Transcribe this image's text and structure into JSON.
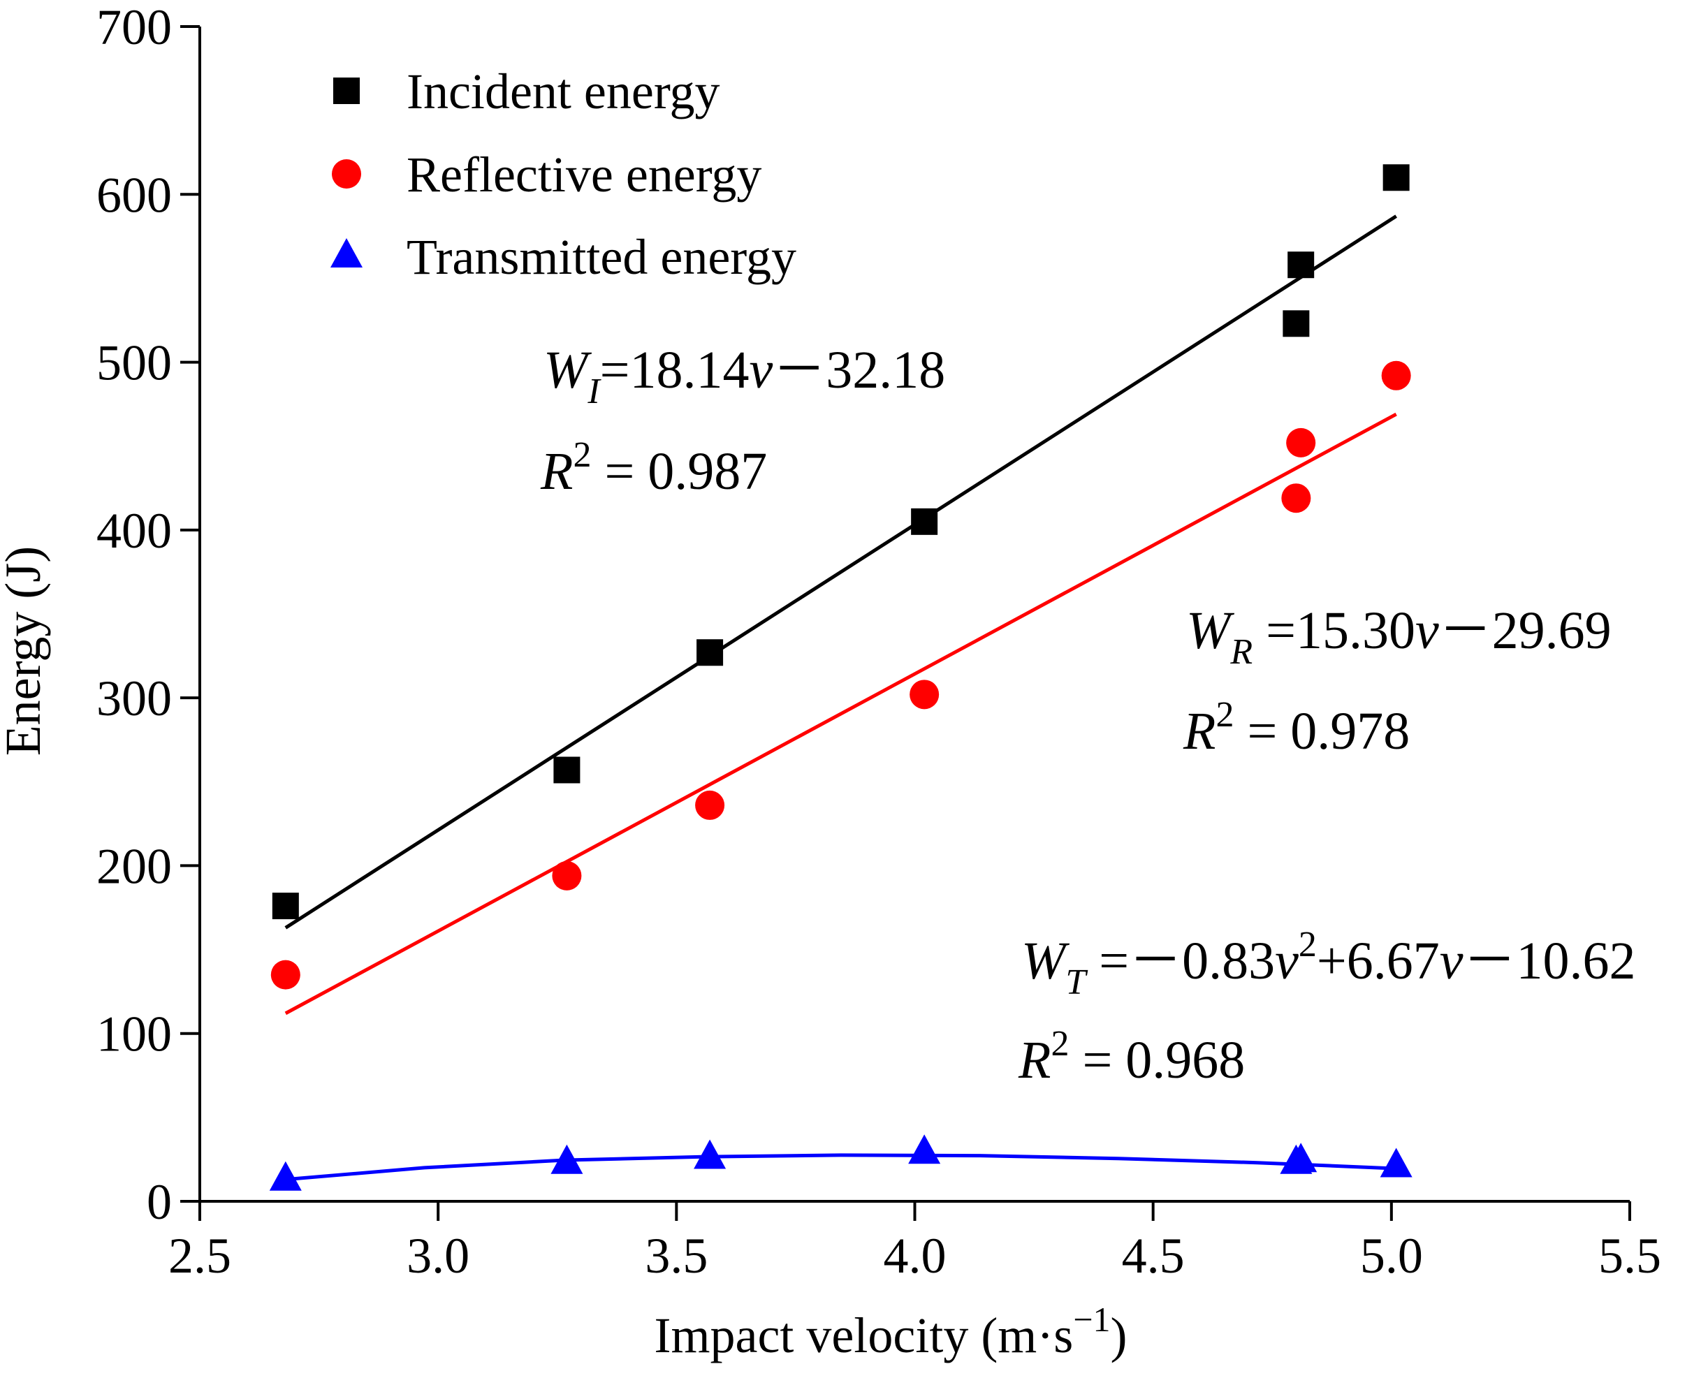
{
  "chart_data": {
    "type": "scatter",
    "xlabel": "Impact velocity (m·s",
    "xlabel_sup": "−1",
    "xlabel_close": ")",
    "ylabel": "Energy (J)",
    "xlim": [
      2.5,
      5.5
    ],
    "ylim": [
      0,
      700
    ],
    "x_ticks": [
      2.5,
      3.0,
      3.5,
      4.0,
      4.5,
      5.0,
      5.5
    ],
    "x_tick_labels": [
      "2.5",
      "3.0",
      "3.5",
      "4.0",
      "4.5",
      "5.0",
      "5.5"
    ],
    "y_ticks": [
      0,
      100,
      200,
      300,
      400,
      500,
      600,
      700
    ],
    "y_tick_labels": [
      "0",
      "100",
      "200",
      "300",
      "400",
      "500",
      "600",
      "700"
    ],
    "grid": false,
    "legend_position": "top-left",
    "series": [
      {
        "name": "Incident energy",
        "marker": "square",
        "color": "#000000",
        "x": [
          2.68,
          3.27,
          3.57,
          4.02,
          4.8,
          4.81,
          5.01
        ],
        "y": [
          176,
          257,
          327,
          405,
          523,
          558,
          610
        ],
        "fit": {
          "kind": "linear",
          "a": 18.14,
          "b": -32.18,
          "x_range": [
            2.68,
            5.01
          ],
          "y_range": [
            163,
            587
          ]
        },
        "equation": {
          "lhs": "W",
          "sub": "I",
          "rhs_parts": [
            {
              "t": "=18.14"
            },
            {
              "t": "v",
              "italic": true
            },
            {
              "t": "－32.18"
            }
          ]
        },
        "r2": {
          "label": "R",
          "sup": "2",
          "value": " = 0.987"
        }
      },
      {
        "name": "Reflective energy",
        "marker": "circle",
        "color": "#ff0000",
        "x": [
          2.68,
          3.27,
          3.57,
          4.02,
          4.8,
          4.81,
          5.01
        ],
        "y": [
          135,
          194,
          236,
          302,
          419,
          452,
          492
        ],
        "fit": {
          "kind": "linear",
          "a": 15.3,
          "b": -29.69,
          "x_range": [
            2.68,
            5.01
          ],
          "y_range": [
            112,
            469
          ]
        },
        "equation": {
          "lhs": "W",
          "sub": "R",
          "rhs_parts": [
            {
              "t": " =15.30"
            },
            {
              "t": "v",
              "italic": true
            },
            {
              "t": "－29.69"
            }
          ]
        },
        "r2": {
          "label": "R",
          "sup": "2",
          "value": " = 0.978"
        }
      },
      {
        "name": "Transmitted energy",
        "marker": "triangle",
        "color": "#0000ff",
        "x": [
          2.68,
          3.27,
          3.57,
          4.02,
          4.8,
          4.81,
          5.01
        ],
        "y": [
          13,
          23,
          26,
          29,
          23,
          24,
          21
        ],
        "fit": {
          "kind": "quadratic",
          "a": -0.83,
          "b": 6.67,
          "c": -10.62,
          "x_range": [
            2.68,
            5.01
          ],
          "y_points": [
            13,
            20,
            24.5,
            26.5,
            27.5,
            27.2,
            25.5,
            23,
            19.5
          ]
        },
        "equation": {
          "lhs": "W",
          "sub": "T",
          "rhs_parts": [
            {
              "t": " =－0.83"
            },
            {
              "t": "v",
              "italic": true
            },
            {
              "t": "2",
              "sup": true
            },
            {
              "t": "+6.67"
            },
            {
              "t": "v",
              "italic": true
            },
            {
              "t": "－10.62"
            }
          ]
        },
        "r2": {
          "label": "R",
          "sup": "2",
          "value": " = 0.968"
        }
      }
    ]
  }
}
